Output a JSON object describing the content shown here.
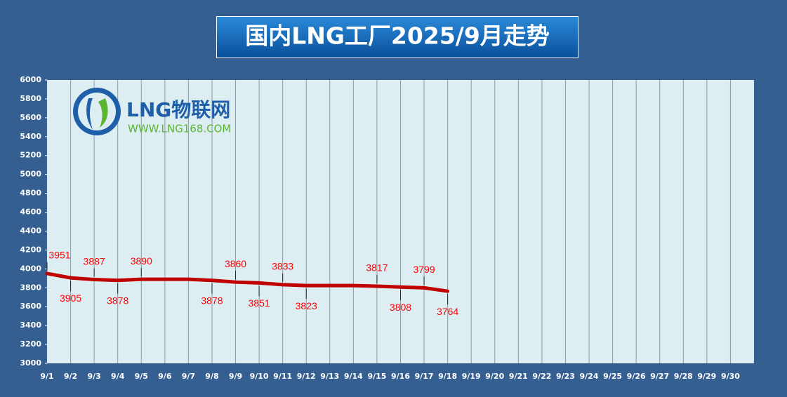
{
  "chart_data": {
    "type": "line",
    "title": "国内LNG工厂2025/9月走势",
    "logo": {
      "name": "LNG物联网",
      "url": "WWW.LNG168.COM"
    },
    "categories": [
      "9/1",
      "9/2",
      "9/3",
      "9/4",
      "9/5",
      "9/6",
      "9/7",
      "9/8",
      "9/9",
      "9/10",
      "9/11",
      "9/12",
      "9/13",
      "9/14",
      "9/15",
      "9/16",
      "9/17",
      "9/18",
      "9/19",
      "9/20",
      "9/21",
      "9/22",
      "9/23",
      "9/24",
      "9/25",
      "9/26",
      "9/27",
      "9/28",
      "9/29",
      "9/30"
    ],
    "series": [
      {
        "name": "国内LNG工厂",
        "color": "#c00000",
        "values": [
          3951,
          3905,
          3887,
          3878,
          3890,
          3890,
          3890,
          3878,
          3860,
          3851,
          3833,
          3823,
          3823,
          3823,
          3817,
          3808,
          3799,
          3764,
          null,
          null,
          null,
          null,
          null,
          null,
          null,
          null,
          null,
          null,
          null,
          null
        ],
        "value_labels": [
          3951,
          3905,
          3887,
          3878,
          3890,
          null,
          null,
          3878,
          3860,
          3851,
          3833,
          3823,
          null,
          null,
          3817,
          3808,
          3799,
          3764,
          null,
          null,
          null,
          null,
          null,
          null,
          null,
          null,
          null,
          null,
          null,
          null
        ]
      }
    ],
    "ylim": [
      3000,
      6000
    ],
    "yticks": [
      3000,
      3200,
      3400,
      3600,
      3800,
      4000,
      4200,
      4400,
      4600,
      4800,
      5000,
      5200,
      5400,
      5600,
      5800,
      6000
    ],
    "grid": true
  }
}
